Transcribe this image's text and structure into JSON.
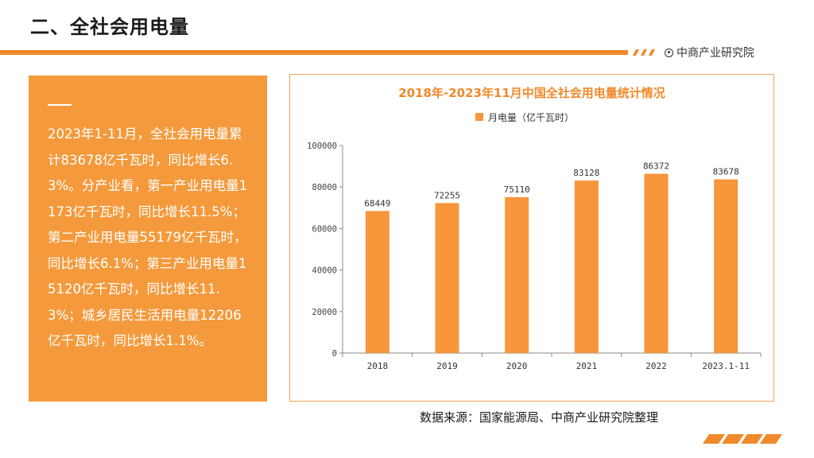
{
  "header": {
    "title": "二、全社会用电量",
    "brand": "中商产业研究院"
  },
  "summary": {
    "text": "2023年1-11月，全社会用电量累计83678亿千瓦时，同比增长6.3%。分产业看，第一产业用电量1173亿千瓦时，同比增长11.5%；第二产业用电量55179亿千瓦时，同比增长6.1%；第三产业用电量15120亿千瓦时，同比增长11.3%；城乡居民生活用电量12206亿千瓦时，同比增长1.1%。"
  },
  "chart_data": {
    "type": "bar",
    "title": "2018年-2023年11月中国全社会用电量统计情况",
    "legend": "月电量（亿千瓦时）",
    "categories": [
      "2018",
      "2019",
      "2020",
      "2021",
      "2022",
      "2023.1-11"
    ],
    "values": [
      68449,
      72255,
      75110,
      83128,
      86372,
      83678
    ],
    "ylim": [
      0,
      100000
    ],
    "yticks": [
      "0",
      "20000",
      "40000",
      "60000",
      "80000",
      "100000"
    ],
    "xlabel": "",
    "ylabel": "",
    "bar_color": "#f7963a"
  },
  "footer": {
    "source": "数据来源：国家能源局、中商产业研究院整理"
  },
  "colors": {
    "accent": "#f0892a",
    "panel": "#f49a3c"
  }
}
